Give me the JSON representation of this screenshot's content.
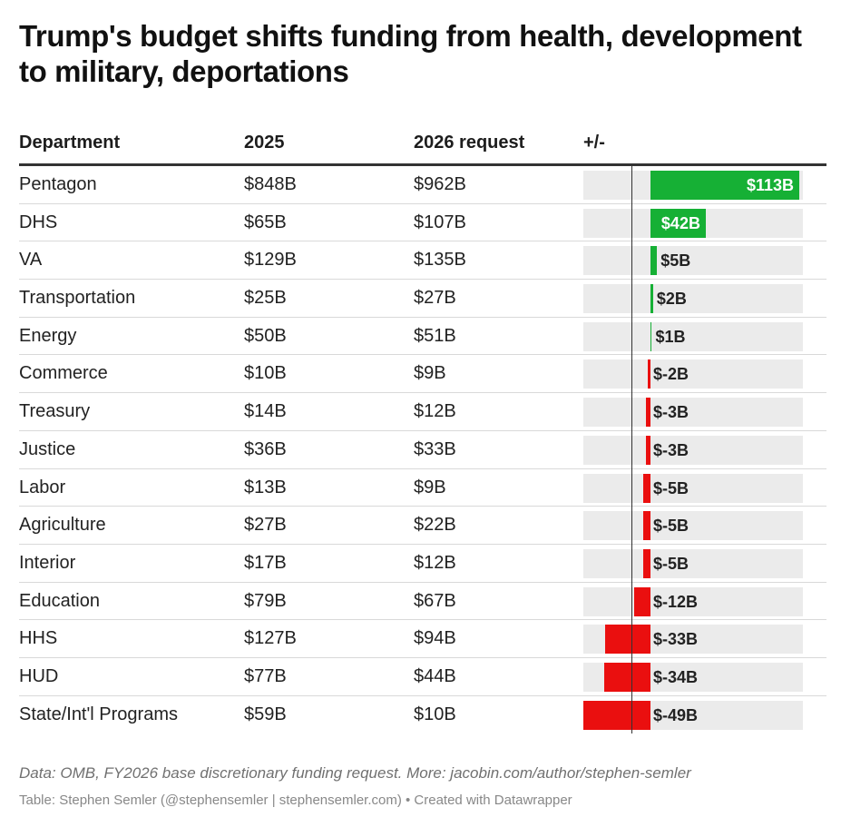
{
  "title": "Trump's budget shifts funding from health, development to military, deportations",
  "columns": {
    "department": "Department",
    "y2025": "2025",
    "y2026": "2026 request",
    "change": "+/-"
  },
  "colors": {
    "positive": "#16b035",
    "negative": "#ea0f0f",
    "track": "#ebebeb"
  },
  "chart_data": {
    "type": "table",
    "title": "Trump's budget shifts funding from health, development to military, deportations",
    "columns": [
      "Department",
      "2025",
      "2026 request",
      "+/-"
    ],
    "change_range": [
      -49,
      113
    ],
    "rows": [
      {
        "department": "Pentagon",
        "y2025": "$848B",
        "y2026": "$962B",
        "change": 113,
        "change_label": "$113B"
      },
      {
        "department": "DHS",
        "y2025": "$65B",
        "y2026": "$107B",
        "change": 42,
        "change_label": "$42B"
      },
      {
        "department": "VA",
        "y2025": "$129B",
        "y2026": "$135B",
        "change": 5,
        "change_label": "$5B"
      },
      {
        "department": "Transportation",
        "y2025": "$25B",
        "y2026": "$27B",
        "change": 2,
        "change_label": "$2B"
      },
      {
        "department": "Energy",
        "y2025": "$50B",
        "y2026": "$51B",
        "change": 1,
        "change_label": "$1B"
      },
      {
        "department": "Commerce",
        "y2025": "$10B",
        "y2026": "$9B",
        "change": -2,
        "change_label": "$-2B"
      },
      {
        "department": "Treasury",
        "y2025": "$14B",
        "y2026": "$12B",
        "change": -3,
        "change_label": "$-3B"
      },
      {
        "department": "Justice",
        "y2025": "$36B",
        "y2026": "$33B",
        "change": -3,
        "change_label": "$-3B"
      },
      {
        "department": "Labor",
        "y2025": "$13B",
        "y2026": "$9B",
        "change": -5,
        "change_label": "$-5B"
      },
      {
        "department": "Agriculture",
        "y2025": "$27B",
        "y2026": "$22B",
        "change": -5,
        "change_label": "$-5B"
      },
      {
        "department": "Interior",
        "y2025": "$17B",
        "y2026": "$12B",
        "change": -5,
        "change_label": "$-5B"
      },
      {
        "department": "Education",
        "y2025": "$79B",
        "y2026": "$67B",
        "change": -12,
        "change_label": "$-12B"
      },
      {
        "department": "HHS",
        "y2025": "$127B",
        "y2026": "$94B",
        "change": -33,
        "change_label": "$-33B"
      },
      {
        "department": "HUD",
        "y2025": "$77B",
        "y2026": "$44B",
        "change": -34,
        "change_label": "$-34B"
      },
      {
        "department": "State/Int'l Programs",
        "y2025": "$59B",
        "y2026": "$10B",
        "change": -49,
        "change_label": "$-49B"
      }
    ]
  },
  "footer": {
    "note": "Data: OMB, FY2026 base discretionary funding request. More: jacobin.com/author/stephen-semler",
    "credit": "Table: Stephen Semler (@stephensemler | stephensemler.com) • Created with Datawrapper"
  }
}
